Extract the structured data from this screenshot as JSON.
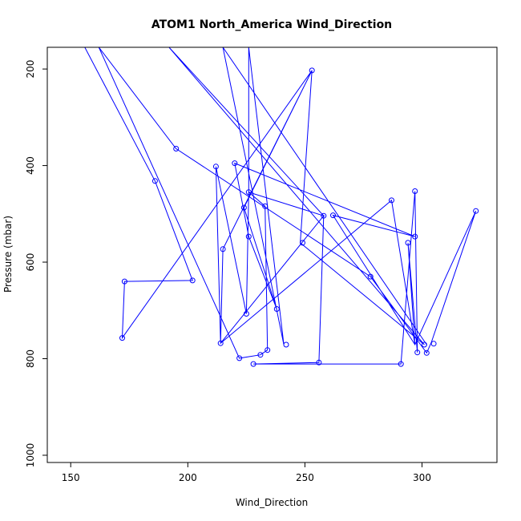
{
  "chart_data": {
    "type": "line",
    "title": "ATOM1 North_America Wind_Direction",
    "xlabel": "Wind_Direction",
    "ylabel": "Pressure (mbar)",
    "xlim": [
      140,
      332
    ],
    "ylim": [
      1015,
      155
    ],
    "y_reversed": true,
    "grid": false,
    "legend": "none",
    "x_ticks": [
      150,
      200,
      250,
      300
    ],
    "y_ticks": [
      200,
      400,
      600,
      800,
      1000
    ],
    "colors": {
      "series": "#0000ff",
      "axis": "#000000"
    },
    "series": [
      {
        "marker": "open-circle",
        "points_visible": [
          [
            253,
            203
          ],
          [
            195,
            365
          ],
          [
            186,
            432
          ],
          [
            212,
            402
          ],
          [
            220,
            395
          ],
          [
            226,
            455
          ],
          [
            224,
            487
          ],
          [
            233,
            484
          ],
          [
            258,
            504
          ],
          [
            262,
            503
          ],
          [
            287,
            472
          ],
          [
            297,
            453
          ],
          [
            323,
            494
          ],
          [
            297,
            547
          ],
          [
            294,
            560
          ],
          [
            249,
            560
          ],
          [
            226,
            547
          ],
          [
            215,
            573
          ],
          [
            278,
            630
          ],
          [
            173,
            640
          ],
          [
            202,
            638
          ],
          [
            238,
            697
          ],
          [
            225,
            707
          ],
          [
            172,
            757
          ],
          [
            214,
            768
          ],
          [
            242,
            771
          ],
          [
            301,
            771
          ],
          [
            305,
            769
          ],
          [
            234,
            782
          ],
          [
            298,
            787
          ],
          [
            302,
            788
          ],
          [
            231,
            792
          ],
          [
            222,
            799
          ],
          [
            256,
            808
          ],
          [
            228,
            811
          ],
          [
            291,
            811
          ]
        ],
        "path": [
          [
            156,
            155
          ],
          [
            186,
            432
          ],
          [
            202,
            638
          ],
          [
            173,
            640
          ],
          [
            172,
            757
          ],
          [
            253,
            203
          ],
          [
            215,
            573
          ],
          [
            214,
            768
          ],
          [
            258,
            504
          ],
          [
            256,
            808
          ],
          [
            228,
            811
          ],
          [
            291,
            811
          ],
          [
            297,
            453
          ],
          [
            298,
            787
          ],
          [
            294,
            560
          ],
          [
            297,
            771
          ],
          [
            287,
            472
          ],
          [
            214,
            768
          ],
          [
            212,
            402
          ],
          [
            225,
            707
          ],
          [
            226,
            455
          ],
          [
            233,
            484
          ],
          [
            234,
            782
          ],
          [
            231,
            792
          ],
          [
            222,
            799
          ],
          [
            162,
            155
          ],
          [
            195,
            365
          ],
          [
            278,
            630
          ],
          [
            302,
            788
          ],
          [
            304,
            766
          ],
          [
            323,
            494
          ],
          [
            297,
            771
          ],
          [
            262,
            503
          ],
          [
            297,
            547
          ],
          [
            220,
            395
          ],
          [
            226,
            547
          ],
          [
            238,
            697
          ],
          [
            224,
            487
          ],
          [
            253,
            203
          ],
          [
            248,
            560
          ],
          [
            301,
            771
          ],
          [
            192,
            155
          ],
          [
            258,
            504
          ],
          [
            226,
            455
          ],
          [
            226,
            155
          ],
          [
            241,
            771
          ],
          [
            215,
            155
          ],
          [
            302,
            771
          ]
        ]
      }
    ]
  }
}
